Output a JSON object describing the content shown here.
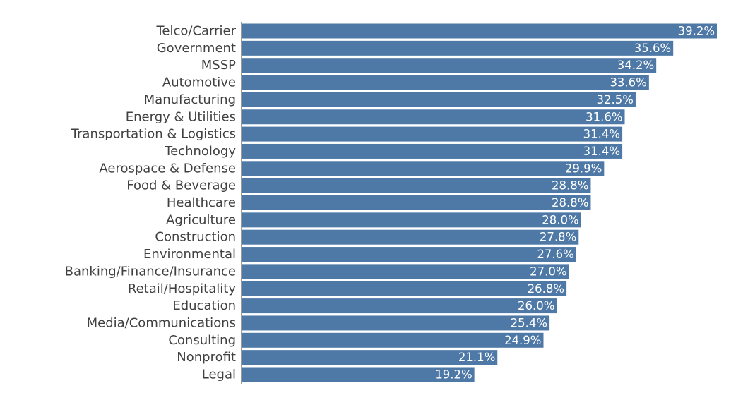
{
  "chart_data": {
    "type": "bar",
    "orientation": "horizontal",
    "categories": [
      "Telco/Carrier",
      "Government",
      "MSSP",
      "Automotive",
      "Manufacturing",
      "Energy & Utilities",
      "Transportation & Logistics",
      "Technology",
      "Aerospace & Defense",
      "Food & Beverage",
      "Healthcare",
      "Agriculture",
      "Construction",
      "Environmental",
      "Banking/Finance/Insurance",
      "Retail/Hospitality",
      "Education",
      "Media/Communications",
      "Consulting",
      "Nonprofit",
      "Legal"
    ],
    "values": [
      39.2,
      35.6,
      34.2,
      33.6,
      32.5,
      31.6,
      31.4,
      31.4,
      29.9,
      28.8,
      28.8,
      28.0,
      27.8,
      27.6,
      27.0,
      26.8,
      26.0,
      25.4,
      24.9,
      21.1,
      19.2
    ],
    "value_labels": [
      "39.2%",
      "35.6%",
      "34.2%",
      "33.6%",
      "32.5%",
      "31.6%",
      "31.4%",
      "31.4%",
      "29.9%",
      "28.8%",
      "28.8%",
      "28.0%",
      "27.8%",
      "27.6%",
      "27.0%",
      "26.8%",
      "26.0%",
      "25.4%",
      "24.9%",
      "21.1%",
      "19.2%"
    ],
    "title": "",
    "xlabel": "",
    "ylabel": "",
    "xlim": [
      0,
      39.2
    ],
    "grid": false,
    "legend": "none",
    "data_labels": "inside-end",
    "colors": {
      "bar": "#4e79a7",
      "axis": "#999999",
      "category_text": "#404040",
      "value_text": "#ffffff"
    }
  }
}
